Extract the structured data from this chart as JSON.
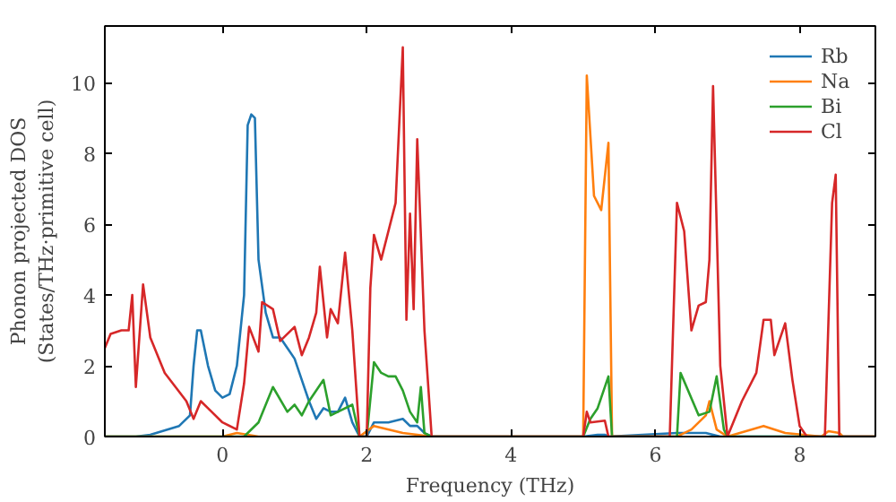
{
  "chart_data": {
    "type": "line",
    "xlabel": "Frequency (THz)",
    "ylabel": "Phonon projected DOS\n(States/THz·primitive cell)",
    "xlim": [
      -1.63,
      9.05
    ],
    "ylim": [
      0,
      11.6
    ],
    "xticks": [
      0,
      2,
      4,
      6,
      8
    ],
    "yticks": [
      0,
      2,
      4,
      6,
      8,
      10
    ],
    "grid": false,
    "legend": "top right",
    "line_style": "solid",
    "marker": "none",
    "series": [
      {
        "name": "Rb",
        "color": "#1f77b4",
        "x": [
          -1.63,
          -1.2,
          -1.0,
          -0.6,
          -0.45,
          -0.4,
          -0.35,
          -0.3,
          -0.2,
          -0.1,
          0,
          0.1,
          0.2,
          0.3,
          0.35,
          0.4,
          0.45,
          0.5,
          0.6,
          0.7,
          0.8,
          0.9,
          1.0,
          1.1,
          1.2,
          1.3,
          1.4,
          1.5,
          1.6,
          1.7,
          1.8,
          1.9,
          2.0,
          2.1,
          2.3,
          2.5,
          2.6,
          2.7,
          2.8,
          2.9,
          5.0,
          5.2,
          5.3,
          5.35,
          6.3,
          6.7,
          6.9,
          9.05
        ],
        "values": [
          0,
          0,
          0.05,
          0.3,
          0.6,
          2.0,
          3.0,
          3.0,
          2.0,
          1.3,
          1.1,
          1.2,
          2.0,
          4.0,
          8.8,
          9.1,
          9.0,
          5.0,
          3.5,
          2.8,
          2.8,
          2.5,
          2.2,
          1.6,
          1.0,
          0.5,
          0.8,
          0.7,
          0.7,
          1.1,
          0.4,
          0,
          0,
          0.4,
          0.4,
          0.5,
          0.3,
          0.3,
          0.1,
          0,
          0,
          0.05,
          0.05,
          0,
          0.1,
          0.1,
          0,
          0
        ]
      },
      {
        "name": "Na",
        "color": "#ff7f0e",
        "x": [
          -1.63,
          0.0,
          0.2,
          0.5,
          1.9,
          2.1,
          2.5,
          2.9,
          5.0,
          5.05,
          5.15,
          5.25,
          5.35,
          5.4,
          6.3,
          6.5,
          6.7,
          6.75,
          6.85,
          7.0,
          7.5,
          7.8,
          8.3,
          8.4,
          8.55,
          8.6,
          9.05
        ],
        "values": [
          0,
          0,
          0.1,
          0,
          0,
          0.3,
          0.1,
          0,
          0,
          10.2,
          6.8,
          6.4,
          8.3,
          0,
          0,
          0.2,
          0.6,
          1.0,
          0.2,
          0,
          0.3,
          0.1,
          0,
          0.15,
          0.1,
          0,
          0
        ]
      },
      {
        "name": "Bi",
        "color": "#2ca02c",
        "x": [
          -1.63,
          0.3,
          0.5,
          0.7,
          0.9,
          1.0,
          1.1,
          1.2,
          1.4,
          1.5,
          1.6,
          1.8,
          1.9,
          2.0,
          2.1,
          2.2,
          2.3,
          2.4,
          2.5,
          2.6,
          2.7,
          2.75,
          2.8,
          2.9,
          5.0,
          5.1,
          5.2,
          5.35,
          5.4,
          6.3,
          6.35,
          6.6,
          6.75,
          6.85,
          6.95,
          7.0,
          9.05
        ],
        "values": [
          0,
          0,
          0.4,
          1.4,
          0.7,
          0.9,
          0.6,
          1.0,
          1.6,
          0.6,
          0.7,
          0.9,
          0,
          0,
          2.1,
          1.8,
          1.7,
          1.7,
          1.3,
          0.7,
          0.4,
          1.4,
          0.1,
          0,
          0,
          0.5,
          0.8,
          1.7,
          0,
          0,
          1.8,
          0.6,
          0.7,
          1.7,
          0.2,
          0,
          0
        ]
      },
      {
        "name": "Cl",
        "color": "#d62728",
        "x": [
          -1.63,
          -1.55,
          -1.4,
          -1.3,
          -1.25,
          -1.2,
          -1.1,
          -1.0,
          -0.8,
          -0.5,
          -0.4,
          -0.3,
          -0.2,
          0,
          0.2,
          0.3,
          0.37,
          0.5,
          0.55,
          0.7,
          0.8,
          1.0,
          1.1,
          1.2,
          1.3,
          1.35,
          1.45,
          1.5,
          1.6,
          1.7,
          1.8,
          1.9,
          2.0,
          2.05,
          2.1,
          2.2,
          2.4,
          2.5,
          2.55,
          2.6,
          2.65,
          2.7,
          2.8,
          2.9,
          5.0,
          5.05,
          5.1,
          5.3,
          5.35,
          6.2,
          6.3,
          6.4,
          6.5,
          6.6,
          6.7,
          6.75,
          6.8,
          6.9,
          7.0,
          7.2,
          7.4,
          7.5,
          7.6,
          7.65,
          7.8,
          7.9,
          8.0,
          8.1,
          8.35,
          8.45,
          8.5,
          8.55,
          9.05
        ],
        "values": [
          2.5,
          2.9,
          3.0,
          3.0,
          4.0,
          1.4,
          4.3,
          2.8,
          1.8,
          1.0,
          0.5,
          1.0,
          0.8,
          0.4,
          0.2,
          1.5,
          3.1,
          2.4,
          3.8,
          3.6,
          2.7,
          3.1,
          2.3,
          2.8,
          3.5,
          4.8,
          2.8,
          3.6,
          3.2,
          5.2,
          3.0,
          0,
          0,
          4.2,
          5.7,
          5.0,
          6.6,
          11.0,
          3.3,
          6.3,
          3.6,
          8.4,
          3.0,
          0,
          0,
          0.7,
          0.4,
          0.45,
          0,
          0,
          6.6,
          5.8,
          3.0,
          3.7,
          3.8,
          5.0,
          9.9,
          2.0,
          0,
          1.0,
          1.8,
          3.3,
          3.3,
          2.3,
          3.2,
          1.6,
          0.3,
          0,
          0,
          6.6,
          7.4,
          0,
          0
        ]
      }
    ]
  }
}
